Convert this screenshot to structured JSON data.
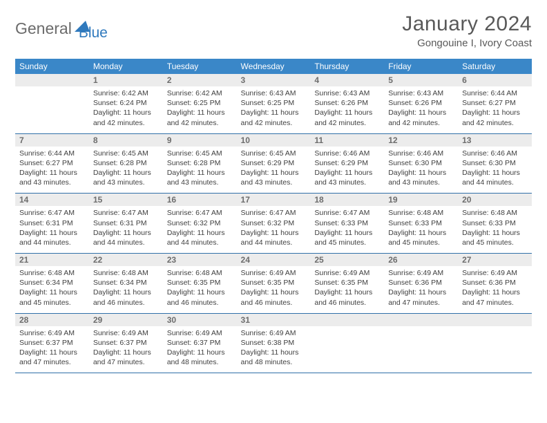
{
  "logo": {
    "general": "General",
    "blue": "Blue"
  },
  "title": "January 2024",
  "location": "Gongouine I, Ivory Coast",
  "day_headers": [
    "Sunday",
    "Monday",
    "Tuesday",
    "Wednesday",
    "Thursday",
    "Friday",
    "Saturday"
  ],
  "colors": {
    "header_bg": "#3a87c8",
    "header_text": "#ffffff",
    "daynum_bg": "#ececec",
    "daynum_text": "#6d6d6d",
    "body_text": "#404040",
    "rule": "#2f6fa8",
    "logo_blue": "#2f79bd",
    "logo_gray": "#6b6b6b"
  },
  "typography": {
    "title_fontsize": 30,
    "location_fontsize": 15,
    "header_fontsize": 12,
    "daynum_fontsize": 12,
    "body_fontsize": 10.5
  },
  "weeks": [
    [
      null,
      {
        "n": "1",
        "sr": "Sunrise: 6:42 AM",
        "ss": "Sunset: 6:24 PM",
        "d1": "Daylight: 11 hours",
        "d2": "and 42 minutes."
      },
      {
        "n": "2",
        "sr": "Sunrise: 6:42 AM",
        "ss": "Sunset: 6:25 PM",
        "d1": "Daylight: 11 hours",
        "d2": "and 42 minutes."
      },
      {
        "n": "3",
        "sr": "Sunrise: 6:43 AM",
        "ss": "Sunset: 6:25 PM",
        "d1": "Daylight: 11 hours",
        "d2": "and 42 minutes."
      },
      {
        "n": "4",
        "sr": "Sunrise: 6:43 AM",
        "ss": "Sunset: 6:26 PM",
        "d1": "Daylight: 11 hours",
        "d2": "and 42 minutes."
      },
      {
        "n": "5",
        "sr": "Sunrise: 6:43 AM",
        "ss": "Sunset: 6:26 PM",
        "d1": "Daylight: 11 hours",
        "d2": "and 42 minutes."
      },
      {
        "n": "6",
        "sr": "Sunrise: 6:44 AM",
        "ss": "Sunset: 6:27 PM",
        "d1": "Daylight: 11 hours",
        "d2": "and 42 minutes."
      }
    ],
    [
      {
        "n": "7",
        "sr": "Sunrise: 6:44 AM",
        "ss": "Sunset: 6:27 PM",
        "d1": "Daylight: 11 hours",
        "d2": "and 43 minutes."
      },
      {
        "n": "8",
        "sr": "Sunrise: 6:45 AM",
        "ss": "Sunset: 6:28 PM",
        "d1": "Daylight: 11 hours",
        "d2": "and 43 minutes."
      },
      {
        "n": "9",
        "sr": "Sunrise: 6:45 AM",
        "ss": "Sunset: 6:28 PM",
        "d1": "Daylight: 11 hours",
        "d2": "and 43 minutes."
      },
      {
        "n": "10",
        "sr": "Sunrise: 6:45 AM",
        "ss": "Sunset: 6:29 PM",
        "d1": "Daylight: 11 hours",
        "d2": "and 43 minutes."
      },
      {
        "n": "11",
        "sr": "Sunrise: 6:46 AM",
        "ss": "Sunset: 6:29 PM",
        "d1": "Daylight: 11 hours",
        "d2": "and 43 minutes."
      },
      {
        "n": "12",
        "sr": "Sunrise: 6:46 AM",
        "ss": "Sunset: 6:30 PM",
        "d1": "Daylight: 11 hours",
        "d2": "and 43 minutes."
      },
      {
        "n": "13",
        "sr": "Sunrise: 6:46 AM",
        "ss": "Sunset: 6:30 PM",
        "d1": "Daylight: 11 hours",
        "d2": "and 44 minutes."
      }
    ],
    [
      {
        "n": "14",
        "sr": "Sunrise: 6:47 AM",
        "ss": "Sunset: 6:31 PM",
        "d1": "Daylight: 11 hours",
        "d2": "and 44 minutes."
      },
      {
        "n": "15",
        "sr": "Sunrise: 6:47 AM",
        "ss": "Sunset: 6:31 PM",
        "d1": "Daylight: 11 hours",
        "d2": "and 44 minutes."
      },
      {
        "n": "16",
        "sr": "Sunrise: 6:47 AM",
        "ss": "Sunset: 6:32 PM",
        "d1": "Daylight: 11 hours",
        "d2": "and 44 minutes."
      },
      {
        "n": "17",
        "sr": "Sunrise: 6:47 AM",
        "ss": "Sunset: 6:32 PM",
        "d1": "Daylight: 11 hours",
        "d2": "and 44 minutes."
      },
      {
        "n": "18",
        "sr": "Sunrise: 6:47 AM",
        "ss": "Sunset: 6:33 PM",
        "d1": "Daylight: 11 hours",
        "d2": "and 45 minutes."
      },
      {
        "n": "19",
        "sr": "Sunrise: 6:48 AM",
        "ss": "Sunset: 6:33 PM",
        "d1": "Daylight: 11 hours",
        "d2": "and 45 minutes."
      },
      {
        "n": "20",
        "sr": "Sunrise: 6:48 AM",
        "ss": "Sunset: 6:33 PM",
        "d1": "Daylight: 11 hours",
        "d2": "and 45 minutes."
      }
    ],
    [
      {
        "n": "21",
        "sr": "Sunrise: 6:48 AM",
        "ss": "Sunset: 6:34 PM",
        "d1": "Daylight: 11 hours",
        "d2": "and 45 minutes."
      },
      {
        "n": "22",
        "sr": "Sunrise: 6:48 AM",
        "ss": "Sunset: 6:34 PM",
        "d1": "Daylight: 11 hours",
        "d2": "and 46 minutes."
      },
      {
        "n": "23",
        "sr": "Sunrise: 6:48 AM",
        "ss": "Sunset: 6:35 PM",
        "d1": "Daylight: 11 hours",
        "d2": "and 46 minutes."
      },
      {
        "n": "24",
        "sr": "Sunrise: 6:49 AM",
        "ss": "Sunset: 6:35 PM",
        "d1": "Daylight: 11 hours",
        "d2": "and 46 minutes."
      },
      {
        "n": "25",
        "sr": "Sunrise: 6:49 AM",
        "ss": "Sunset: 6:35 PM",
        "d1": "Daylight: 11 hours",
        "d2": "and 46 minutes."
      },
      {
        "n": "26",
        "sr": "Sunrise: 6:49 AM",
        "ss": "Sunset: 6:36 PM",
        "d1": "Daylight: 11 hours",
        "d2": "and 47 minutes."
      },
      {
        "n": "27",
        "sr": "Sunrise: 6:49 AM",
        "ss": "Sunset: 6:36 PM",
        "d1": "Daylight: 11 hours",
        "d2": "and 47 minutes."
      }
    ],
    [
      {
        "n": "28",
        "sr": "Sunrise: 6:49 AM",
        "ss": "Sunset: 6:37 PM",
        "d1": "Daylight: 11 hours",
        "d2": "and 47 minutes."
      },
      {
        "n": "29",
        "sr": "Sunrise: 6:49 AM",
        "ss": "Sunset: 6:37 PM",
        "d1": "Daylight: 11 hours",
        "d2": "and 47 minutes."
      },
      {
        "n": "30",
        "sr": "Sunrise: 6:49 AM",
        "ss": "Sunset: 6:37 PM",
        "d1": "Daylight: 11 hours",
        "d2": "and 48 minutes."
      },
      {
        "n": "31",
        "sr": "Sunrise: 6:49 AM",
        "ss": "Sunset: 6:38 PM",
        "d1": "Daylight: 11 hours",
        "d2": "and 48 minutes."
      },
      null,
      null,
      null
    ]
  ]
}
